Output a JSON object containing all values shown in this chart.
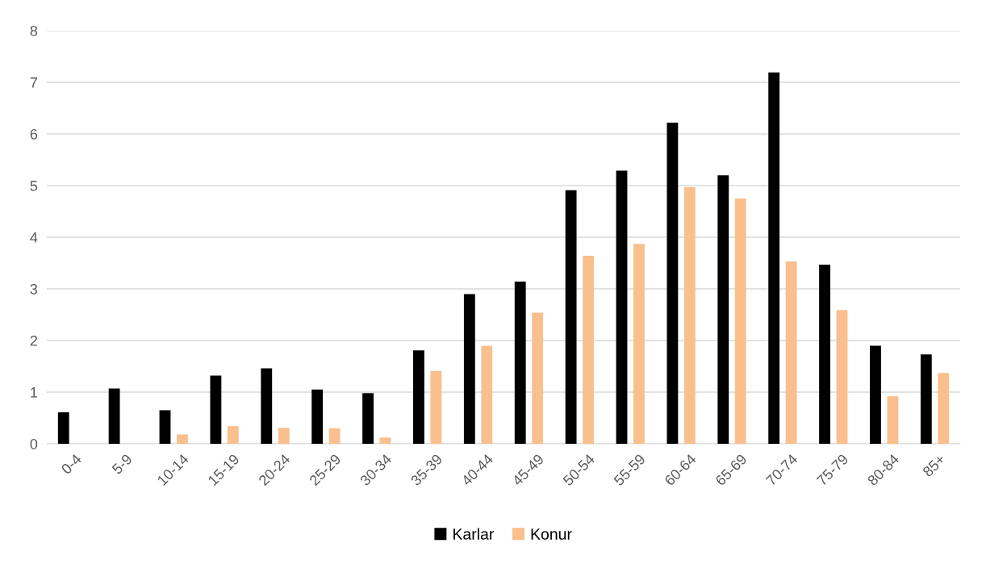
{
  "chart_data": {
    "type": "bar",
    "categories": [
      "0-4",
      "5-9",
      "10-14",
      "15-19",
      "20-24",
      "25-29",
      "30-34",
      "35-39",
      "40-44",
      "45-49",
      "50-54",
      "55-59",
      "60-64",
      "65-69",
      "70-74",
      "75-79",
      "80-84",
      "85+"
    ],
    "series": [
      {
        "name": "Karlar",
        "color": "#000000",
        "values": [
          0.61,
          1.07,
          0.65,
          1.32,
          1.46,
          1.05,
          0.98,
          1.81,
          2.9,
          3.14,
          4.91,
          5.29,
          6.22,
          5.2,
          7.19,
          3.47,
          1.9,
          1.73
        ]
      },
      {
        "name": "Konur",
        "color": "#f9bf8d",
        "values": [
          0,
          0,
          0.18,
          0.34,
          0.31,
          0.3,
          0.12,
          1.41,
          1.9,
          2.54,
          3.64,
          3.87,
          4.97,
          4.75,
          3.53,
          2.59,
          0.92,
          1.37
        ]
      }
    ],
    "ylim": [
      0,
      8
    ],
    "yticks": [
      0,
      1,
      2,
      3,
      4,
      5,
      6,
      7,
      8
    ],
    "grid": "y",
    "legend": "bottom"
  }
}
